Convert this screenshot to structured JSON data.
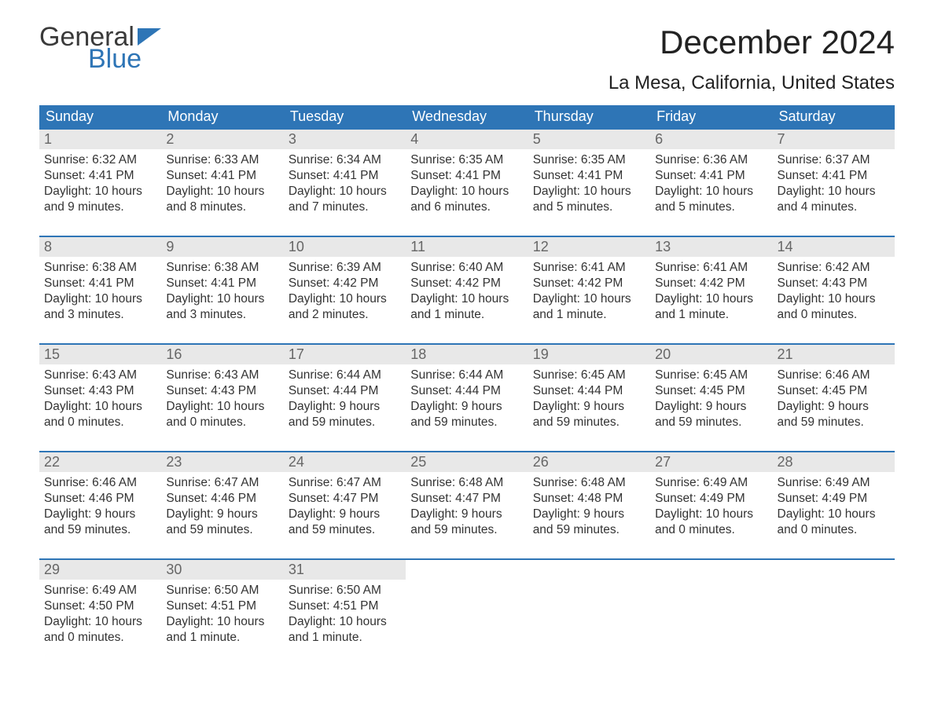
{
  "logo": {
    "textTop": "General",
    "textBottom": "Blue",
    "flagColor": "#2e75b6"
  },
  "header": {
    "monthTitle": "December 2024",
    "location": "La Mesa, California, United States"
  },
  "colors": {
    "headerBg": "#2e75b6",
    "headerText": "#ffffff",
    "dayNumBg": "#e8e8e8",
    "weekBorder": "#2e75b6",
    "pageBg": "#ffffff",
    "bodyText": "#333333"
  },
  "columns": [
    "Sunday",
    "Monday",
    "Tuesday",
    "Wednesday",
    "Thursday",
    "Friday",
    "Saturday"
  ],
  "weeks": [
    [
      {
        "n": "1",
        "sunrise": "6:32 AM",
        "sunset": "4:41 PM",
        "daylight": "10 hours and 9 minutes."
      },
      {
        "n": "2",
        "sunrise": "6:33 AM",
        "sunset": "4:41 PM",
        "daylight": "10 hours and 8 minutes."
      },
      {
        "n": "3",
        "sunrise": "6:34 AM",
        "sunset": "4:41 PM",
        "daylight": "10 hours and 7 minutes."
      },
      {
        "n": "4",
        "sunrise": "6:35 AM",
        "sunset": "4:41 PM",
        "daylight": "10 hours and 6 minutes."
      },
      {
        "n": "5",
        "sunrise": "6:35 AM",
        "sunset": "4:41 PM",
        "daylight": "10 hours and 5 minutes."
      },
      {
        "n": "6",
        "sunrise": "6:36 AM",
        "sunset": "4:41 PM",
        "daylight": "10 hours and 5 minutes."
      },
      {
        "n": "7",
        "sunrise": "6:37 AM",
        "sunset": "4:41 PM",
        "daylight": "10 hours and 4 minutes."
      }
    ],
    [
      {
        "n": "8",
        "sunrise": "6:38 AM",
        "sunset": "4:41 PM",
        "daylight": "10 hours and 3 minutes."
      },
      {
        "n": "9",
        "sunrise": "6:38 AM",
        "sunset": "4:41 PM",
        "daylight": "10 hours and 3 minutes."
      },
      {
        "n": "10",
        "sunrise": "6:39 AM",
        "sunset": "4:42 PM",
        "daylight": "10 hours and 2 minutes."
      },
      {
        "n": "11",
        "sunrise": "6:40 AM",
        "sunset": "4:42 PM",
        "daylight": "10 hours and 1 minute."
      },
      {
        "n": "12",
        "sunrise": "6:41 AM",
        "sunset": "4:42 PM",
        "daylight": "10 hours and 1 minute."
      },
      {
        "n": "13",
        "sunrise": "6:41 AM",
        "sunset": "4:42 PM",
        "daylight": "10 hours and 1 minute."
      },
      {
        "n": "14",
        "sunrise": "6:42 AM",
        "sunset": "4:43 PM",
        "daylight": "10 hours and 0 minutes."
      }
    ],
    [
      {
        "n": "15",
        "sunrise": "6:43 AM",
        "sunset": "4:43 PM",
        "daylight": "10 hours and 0 minutes."
      },
      {
        "n": "16",
        "sunrise": "6:43 AM",
        "sunset": "4:43 PM",
        "daylight": "10 hours and 0 minutes."
      },
      {
        "n": "17",
        "sunrise": "6:44 AM",
        "sunset": "4:44 PM",
        "daylight": "9 hours and 59 minutes."
      },
      {
        "n": "18",
        "sunrise": "6:44 AM",
        "sunset": "4:44 PM",
        "daylight": "9 hours and 59 minutes."
      },
      {
        "n": "19",
        "sunrise": "6:45 AM",
        "sunset": "4:44 PM",
        "daylight": "9 hours and 59 minutes."
      },
      {
        "n": "20",
        "sunrise": "6:45 AM",
        "sunset": "4:45 PM",
        "daylight": "9 hours and 59 minutes."
      },
      {
        "n": "21",
        "sunrise": "6:46 AM",
        "sunset": "4:45 PM",
        "daylight": "9 hours and 59 minutes."
      }
    ],
    [
      {
        "n": "22",
        "sunrise": "6:46 AM",
        "sunset": "4:46 PM",
        "daylight": "9 hours and 59 minutes."
      },
      {
        "n": "23",
        "sunrise": "6:47 AM",
        "sunset": "4:46 PM",
        "daylight": "9 hours and 59 minutes."
      },
      {
        "n": "24",
        "sunrise": "6:47 AM",
        "sunset": "4:47 PM",
        "daylight": "9 hours and 59 minutes."
      },
      {
        "n": "25",
        "sunrise": "6:48 AM",
        "sunset": "4:47 PM",
        "daylight": "9 hours and 59 minutes."
      },
      {
        "n": "26",
        "sunrise": "6:48 AM",
        "sunset": "4:48 PM",
        "daylight": "9 hours and 59 minutes."
      },
      {
        "n": "27",
        "sunrise": "6:49 AM",
        "sunset": "4:49 PM",
        "daylight": "10 hours and 0 minutes."
      },
      {
        "n": "28",
        "sunrise": "6:49 AM",
        "sunset": "4:49 PM",
        "daylight": "10 hours and 0 minutes."
      }
    ],
    [
      {
        "n": "29",
        "sunrise": "6:49 AM",
        "sunset": "4:50 PM",
        "daylight": "10 hours and 0 minutes."
      },
      {
        "n": "30",
        "sunrise": "6:50 AM",
        "sunset": "4:51 PM",
        "daylight": "10 hours and 1 minute."
      },
      {
        "n": "31",
        "sunrise": "6:50 AM",
        "sunset": "4:51 PM",
        "daylight": "10 hours and 1 minute."
      },
      null,
      null,
      null,
      null
    ]
  ],
  "labels": {
    "sunrise": "Sunrise: ",
    "sunset": "Sunset: ",
    "daylight": "Daylight: "
  }
}
